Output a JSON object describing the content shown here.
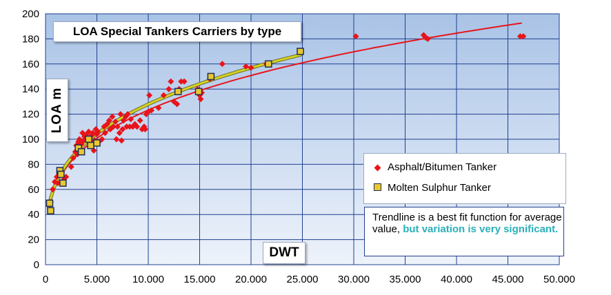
{
  "chart_data": {
    "type": "scatter",
    "title": "LOA Special Tankers Carriers by type",
    "xlabel": "DWT",
    "ylabel": "LOA  m",
    "xlim": [
      0,
      50000
    ],
    "ylim": [
      0,
      200
    ],
    "x_ticks": [
      0,
      5000,
      10000,
      15000,
      20000,
      25000,
      30000,
      35000,
      40000,
      45000,
      50000
    ],
    "x_tick_labels": [
      "0",
      "5.000",
      "10.000",
      "15.000",
      "20.000",
      "25.000",
      "30.000",
      "35.000",
      "40.000",
      "45.000",
      "50.000"
    ],
    "y_ticks": [
      0,
      20,
      40,
      60,
      80,
      100,
      120,
      140,
      160,
      180,
      200
    ],
    "y_tick_labels": [
      "0",
      "20",
      "40",
      "60",
      "80",
      "100",
      "120",
      "140",
      "160",
      "180",
      "200"
    ],
    "grid": true,
    "legend_position": "right",
    "colors": {
      "plot_bg_top": "#a9c3e6",
      "plot_bg_bottom": "#eef3fb",
      "grid": "#1f3f8f",
      "asphalt": "#e8141b",
      "sulphur_fill": "#e8c830",
      "sulphur_edge": "#1f2d55",
      "trend_asphalt": "#e8141b",
      "trend_sulphur": "#d4d420"
    },
    "series": [
      {
        "name": "Asphalt/Bitumen Tanker",
        "marker": "diamond",
        "points": [
          [
            500,
            50
          ],
          [
            700,
            60
          ],
          [
            900,
            66
          ],
          [
            1100,
            70
          ],
          [
            1200,
            65
          ],
          [
            1400,
            72
          ],
          [
            1600,
            74
          ],
          [
            1800,
            68
          ],
          [
            2000,
            70
          ],
          [
            2500,
            78
          ],
          [
            2700,
            85
          ],
          [
            2900,
            90
          ],
          [
            3000,
            95
          ],
          [
            3100,
            88
          ],
          [
            3200,
            98
          ],
          [
            3300,
            100
          ],
          [
            3400,
            92
          ],
          [
            3500,
            96
          ],
          [
            3600,
            105
          ],
          [
            3700,
            99
          ],
          [
            3800,
            102
          ],
          [
            4000,
            104
          ],
          [
            4100,
            100
          ],
          [
            4200,
            106
          ],
          [
            4300,
            97
          ],
          [
            4500,
            103
          ],
          [
            4600,
            105
          ],
          [
            4700,
            91
          ],
          [
            4800,
            99
          ],
          [
            4900,
            108
          ],
          [
            5000,
            104
          ],
          [
            5100,
            106
          ],
          [
            5200,
            98
          ],
          [
            5500,
            100
          ],
          [
            5700,
            110
          ],
          [
            5800,
            105
          ],
          [
            6000,
            112
          ],
          [
            6200,
            115
          ],
          [
            6300,
            108
          ],
          [
            6500,
            118
          ],
          [
            6600,
            110
          ],
          [
            6800,
            114
          ],
          [
            6900,
            100
          ],
          [
            7000,
            110
          ],
          [
            7200,
            105
          ],
          [
            7300,
            120
          ],
          [
            7400,
            99
          ],
          [
            7500,
            108
          ],
          [
            7600,
            115
          ],
          [
            7800,
            118
          ],
          [
            7900,
            110
          ],
          [
            8000,
            120
          ],
          [
            8200,
            110
          ],
          [
            8300,
            116
          ],
          [
            8500,
            110
          ],
          [
            8700,
            112
          ],
          [
            8900,
            110
          ],
          [
            9200,
            115
          ],
          [
            9400,
            108
          ],
          [
            9600,
            110
          ],
          [
            9700,
            108
          ],
          [
            9800,
            120
          ],
          [
            10000,
            122
          ],
          [
            10100,
            135
          ],
          [
            10300,
            123
          ],
          [
            11000,
            125
          ],
          [
            11500,
            135
          ],
          [
            12000,
            140
          ],
          [
            12200,
            146
          ],
          [
            12500,
            130
          ],
          [
            12800,
            128
          ],
          [
            13000,
            140
          ],
          [
            13200,
            146
          ],
          [
            13500,
            146
          ],
          [
            14800,
            140
          ],
          [
            15000,
            135
          ],
          [
            15100,
            132
          ],
          [
            15200,
            137
          ],
          [
            16000,
            148
          ],
          [
            17200,
            160
          ],
          [
            19500,
            158
          ],
          [
            20000,
            157
          ],
          [
            21500,
            160
          ],
          [
            30200,
            182
          ],
          [
            36800,
            183
          ],
          [
            37000,
            181
          ],
          [
            37200,
            180
          ],
          [
            46200,
            182
          ],
          [
            46500,
            182
          ]
        ]
      },
      {
        "name": "Molten Sulphur Tanker",
        "marker": "square",
        "points": [
          [
            400,
            49
          ],
          [
            500,
            43
          ],
          [
            1400,
            75
          ],
          [
            1500,
            72
          ],
          [
            1700,
            65
          ],
          [
            3200,
            93
          ],
          [
            3500,
            90
          ],
          [
            4200,
            100
          ],
          [
            4400,
            95
          ],
          [
            5000,
            97
          ],
          [
            12900,
            138
          ],
          [
            14900,
            138
          ],
          [
            16100,
            150
          ],
          [
            21700,
            160
          ],
          [
            24800,
            170
          ]
        ]
      }
    ],
    "trendlines": [
      {
        "series": "Asphalt/Bitumen Tanker",
        "type": "power",
        "a": 8.45,
        "b": 0.291,
        "x_range": [
          300,
          46300
        ]
      },
      {
        "series": "Molten Sulphur Tanker",
        "type": "power",
        "a": 8.45,
        "b": 0.295,
        "x_range": [
          300,
          24800
        ]
      }
    ],
    "legend": [
      "Asphalt/Bitumen Tanker",
      "Molten Sulphur Tanker"
    ],
    "note": {
      "text": "Trendline is a best fit function for average value, ",
      "highlight": "but variation is very significant."
    }
  }
}
